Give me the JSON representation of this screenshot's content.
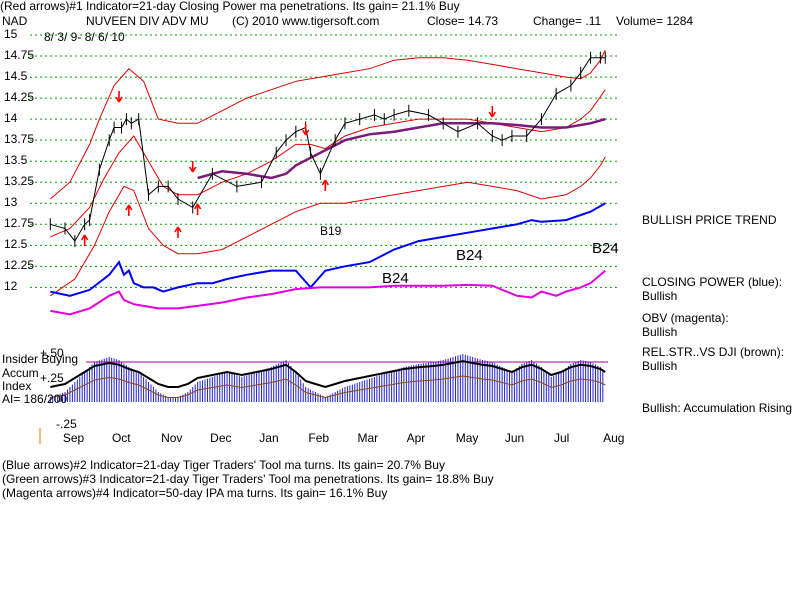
{
  "header": {
    "line1": "(Red arrows)#1 Indicator=21-day Closing Power ma penetrations.  Its gain= 21.1% Buy",
    "ticker": "NAD",
    "name": "NUVEEN DIV ADV MU",
    "copyright": "(C) 2010 www.tigersoft.com",
    "close": "Close=  14.73",
    "change": "Change= .11",
    "volume": "Volume= 1284",
    "daterange": "8/ 3/ 9- 8/ 6/ 10"
  },
  "right_labels": {
    "trend": "BULLISH PRICE TREND",
    "cp_title": "CLOSING POWER (blue):",
    "cp_value": "Bullish",
    "obv_title": "OBV (magenta):",
    "obv_value": "Bullish",
    "rs_title": "REL.STR..VS DJI (brown):",
    "rs_value": "Bullish",
    "accum": "Bullish: Accumulation Rising"
  },
  "insider": {
    "line1": "Insider Buying",
    "line2": "Accum",
    "line3": "Index",
    "ai": "AI= 186/200",
    "tick_p50": "+.50",
    "tick_p25": "+.25",
    "tick_m25": "-.25"
  },
  "annotations": {
    "b19": "B19",
    "b24a": "B24",
    "b24b": "B24",
    "b24c": "B24"
  },
  "footer": {
    "l1": "(Blue arrows)#2 Indicator=21-day Tiger Traders' Tool ma turns.  Its gain= 20.7% Buy",
    "l2": "(Green arrows)#3 Indicator=21-day Tiger Traders' Tool ma penetrations.  Its gain= 18.8% Buy",
    "l3": "(Magenta arrows)#4 Indicator=50-day IPA ma turns.  Its gain= 16.1% Buy"
  },
  "colors": {
    "price": "#000000",
    "band": "#e00000",
    "ma50": "#7a1a7a",
    "closing_power": "#0000ff",
    "obv": "#e000e0",
    "rel_strength": "#8b4513",
    "accum_bars": "#2020cc",
    "grid": "#00a000",
    "arrow": "#ff0000"
  },
  "chart_data": {
    "type": "line",
    "price_axis": {
      "ticks": [
        15,
        14.75,
        14.5,
        14.25,
        14,
        13.75,
        13.5,
        13.25,
        13,
        12.75,
        12.5,
        12.25,
        12
      ],
      "tick_labels": [
        "15",
        "14.75",
        "14.5",
        "14.25",
        "14",
        "13.75",
        "13.5",
        "13.25",
        "13",
        "12.75",
        "12.5",
        "12.25",
        "12"
      ],
      "ylim": [
        11.85,
        15
      ]
    },
    "x_axis": {
      "tick_labels": [
        "Sep",
        "Oct",
        "Nov",
        "Dec",
        "Jan",
        "Feb",
        "Mar",
        "Apr",
        "May",
        "Jun",
        "Jul",
        "Aug"
      ],
      "x": [
        0.5,
        1.5,
        2.5,
        3.5,
        4.5,
        5.5,
        6.5,
        7.5,
        8.5,
        9.5,
        10.5,
        11.5
      ],
      "xlim": [
        -0.25,
        11.6
      ]
    },
    "series": [
      {
        "key": "price",
        "x": [
          0.0,
          0.3,
          0.5,
          0.7,
          0.8,
          1.0,
          1.2,
          1.3,
          1.45,
          1.55,
          1.65,
          1.8,
          2.0,
          2.2,
          2.4,
          2.6,
          2.9,
          3.3,
          3.8,
          4.3,
          4.6,
          4.8,
          5.0,
          5.2,
          5.3,
          5.5,
          5.8,
          6.0,
          6.3,
          6.6,
          6.8,
          7.0,
          7.3,
          7.7,
          8.0,
          8.3,
          8.7,
          9.0,
          9.2,
          9.4,
          9.7,
          10.0,
          10.3,
          10.6,
          10.8,
          11.0,
          11.2,
          11.3
        ],
        "y": [
          12.75,
          12.7,
          12.55,
          12.75,
          12.8,
          13.4,
          13.75,
          13.9,
          13.9,
          14.0,
          13.95,
          14.0,
          13.1,
          13.2,
          13.2,
          13.05,
          12.95,
          13.35,
          13.2,
          13.25,
          13.6,
          13.75,
          13.85,
          13.9,
          13.6,
          13.35,
          13.75,
          13.95,
          14.0,
          14.05,
          14.0,
          14.05,
          14.1,
          14.05,
          13.95,
          13.85,
          13.95,
          13.8,
          13.75,
          13.8,
          13.8,
          14.0,
          14.3,
          14.4,
          14.55,
          14.73,
          14.73,
          14.73
        ]
      },
      {
        "key": "ma50",
        "x": [
          3.0,
          3.5,
          4.0,
          4.5,
          4.8,
          5.0,
          5.5,
          6.0,
          6.5,
          7.0,
          7.5,
          8.0,
          8.5,
          9.0,
          9.5,
          10.0,
          10.5,
          11.0,
          11.3
        ],
        "y": [
          13.3,
          13.38,
          13.35,
          13.3,
          13.35,
          13.45,
          13.6,
          13.75,
          13.82,
          13.85,
          13.9,
          13.95,
          13.95,
          13.95,
          13.93,
          13.9,
          13.9,
          13.95,
          14.0
        ]
      },
      {
        "key": "upper_band",
        "x": [
          0.0,
          0.4,
          0.8,
          1.0,
          1.3,
          1.6,
          1.9,
          2.2,
          2.6,
          3.0,
          3.5,
          4.0,
          4.5,
          5.0,
          5.5,
          6.0,
          6.5,
          7.0,
          7.5,
          8.0,
          8.5,
          9.0,
          9.5,
          10.0,
          10.5,
          10.8,
          11.0,
          11.2,
          11.3
        ],
        "y": [
          13.05,
          13.25,
          13.7,
          14.0,
          14.4,
          14.6,
          14.45,
          14.0,
          13.95,
          13.95,
          14.1,
          14.25,
          14.35,
          14.45,
          14.5,
          14.55,
          14.6,
          14.7,
          14.73,
          14.73,
          14.7,
          14.65,
          14.6,
          14.55,
          14.5,
          14.48,
          14.55,
          14.7,
          14.82
        ]
      },
      {
        "key": "mid_band",
        "x": [
          0.0,
          0.4,
          0.8,
          1.1,
          1.4,
          1.7,
          2.0,
          2.3,
          2.6,
          3.0,
          3.5,
          4.0,
          4.5,
          5.0,
          5.3,
          5.6,
          6.0,
          6.5,
          7.0,
          7.5,
          8.0,
          8.5,
          9.0,
          9.5,
          10.0,
          10.5,
          10.8,
          11.0,
          11.3
        ],
        "y": [
          12.6,
          12.7,
          12.95,
          13.3,
          13.6,
          13.8,
          13.5,
          13.2,
          13.1,
          13.1,
          13.25,
          13.35,
          13.5,
          13.7,
          13.7,
          13.65,
          13.8,
          13.9,
          13.95,
          14.0,
          14.0,
          14.0,
          13.95,
          13.9,
          13.85,
          13.9,
          14.0,
          14.1,
          14.35
        ]
      },
      {
        "key": "lower_band",
        "x": [
          0.0,
          0.5,
          0.9,
          1.2,
          1.5,
          1.7,
          2.0,
          2.3,
          2.6,
          3.0,
          3.5,
          4.0,
          4.5,
          5.0,
          5.5,
          6.0,
          6.5,
          7.0,
          7.5,
          8.0,
          8.5,
          9.0,
          9.5,
          10.0,
          10.5,
          10.8,
          11.0,
          11.2,
          11.3
        ],
        "y": [
          11.9,
          12.1,
          12.5,
          12.9,
          13.2,
          13.15,
          12.7,
          12.5,
          12.4,
          12.4,
          12.45,
          12.6,
          12.75,
          12.9,
          13.0,
          13.0,
          13.05,
          13.1,
          13.15,
          13.2,
          13.25,
          13.2,
          13.15,
          13.05,
          13.1,
          13.2,
          13.3,
          13.45,
          13.55
        ]
      },
      {
        "key": "closing_power",
        "x": [
          0.0,
          0.4,
          0.8,
          1.2,
          1.4,
          1.5,
          1.6,
          1.7,
          1.9,
          2.1,
          2.3,
          2.6,
          3.0,
          3.3,
          3.6,
          4.0,
          4.5,
          5.0,
          5.3,
          5.6,
          6.0,
          6.5,
          7.0,
          7.5,
          8.0,
          8.5,
          9.0,
          9.5,
          9.8,
          10.0,
          10.5,
          11.0,
          11.3
        ],
        "y": [
          11.95,
          11.9,
          11.97,
          12.15,
          12.3,
          12.15,
          12.2,
          12.05,
          12.0,
          12.0,
          11.95,
          12.0,
          12.05,
          12.05,
          12.1,
          12.15,
          12.2,
          12.2,
          12.0,
          12.2,
          12.25,
          12.3,
          12.45,
          12.55,
          12.6,
          12.65,
          12.7,
          12.75,
          12.8,
          12.78,
          12.8,
          12.9,
          13.0
        ]
      },
      {
        "key": "obv",
        "x": [
          0.0,
          0.4,
          0.8,
          1.2,
          1.4,
          1.5,
          1.7,
          1.9,
          2.2,
          2.6,
          3.0,
          3.5,
          4.0,
          4.5,
          5.0,
          5.5,
          6.0,
          6.5,
          7.0,
          7.5,
          8.0,
          8.5,
          9.0,
          9.5,
          9.8,
          10.0,
          10.3,
          10.5,
          10.8,
          11.0,
          11.3
        ],
        "y": [
          11.72,
          11.68,
          11.75,
          11.9,
          11.95,
          11.85,
          11.8,
          11.78,
          11.75,
          11.75,
          11.78,
          11.82,
          11.88,
          11.92,
          11.98,
          12.0,
          12.0,
          12.0,
          12.02,
          12.02,
          12.02,
          12.03,
          12.02,
          11.9,
          11.88,
          11.95,
          11.9,
          11.95,
          12.0,
          12.05,
          12.2
        ]
      },
      {
        "key": "accumulation_index",
        "x": [
          0.0,
          0.3,
          0.6,
          0.9,
          1.2,
          1.4,
          1.6,
          1.8,
          2.0,
          2.2,
          2.4,
          2.6,
          2.8,
          3.0,
          3.3,
          3.6,
          3.9,
          4.2,
          4.5,
          4.8,
          5.0,
          5.2,
          5.4,
          5.6,
          5.8,
          6.0,
          6.3,
          6.6,
          6.9,
          7.2,
          7.5,
          7.8,
          8.0,
          8.2,
          8.4,
          8.6,
          8.8,
          9.0,
          9.2,
          9.4,
          9.6,
          9.8,
          10.0,
          10.2,
          10.4,
          10.6,
          10.8,
          11.0,
          11.2,
          11.3
        ],
        "y": [
          0.05,
          0.1,
          0.25,
          0.4,
          0.45,
          0.42,
          0.35,
          0.3,
          0.2,
          0.1,
          0.05,
          0.05,
          0.1,
          0.2,
          0.25,
          0.3,
          0.25,
          0.3,
          0.35,
          0.42,
          0.3,
          0.15,
          0.1,
          0.05,
          0.1,
          0.15,
          0.2,
          0.25,
          0.3,
          0.35,
          0.38,
          0.4,
          0.42,
          0.45,
          0.48,
          0.45,
          0.42,
          0.4,
          0.35,
          0.3,
          0.38,
          0.42,
          0.35,
          0.25,
          0.3,
          0.38,
          0.42,
          0.4,
          0.35,
          0.3
        ]
      }
    ],
    "accum_axis": {
      "ticks": [
        0.5,
        0.25,
        -0.25
      ],
      "tick_labels": [
        "+.50",
        "+.25",
        "-.25"
      ]
    },
    "red_buy_arrows_x": [
      0.7,
      1.6,
      2.6,
      3.0,
      5.6
    ],
    "red_sell_arrows_x": [
      1.4,
      2.9,
      5.2,
      9.0
    ],
    "gridlines": true,
    "legend": "right"
  }
}
